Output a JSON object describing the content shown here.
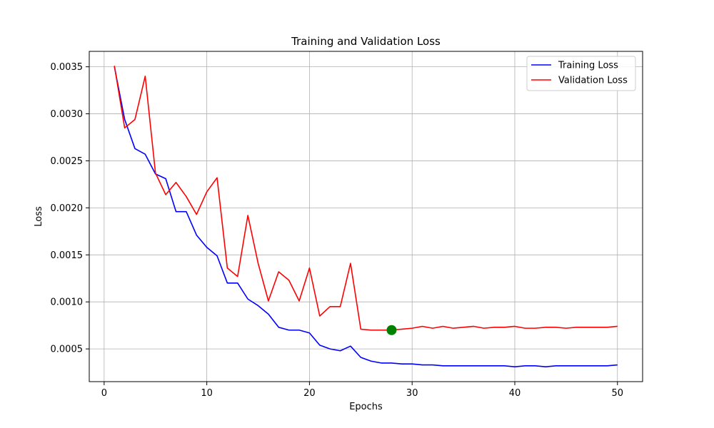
{
  "chart_data": {
    "type": "line",
    "title": "Training and Validation Loss",
    "xlabel": "Epochs",
    "ylabel": "Loss",
    "xlim": [
      -1.45,
      52.45
    ],
    "ylim": [
      0.000152,
      0.003664
    ],
    "xticks": [
      0,
      10,
      20,
      30,
      40,
      50
    ],
    "xtick_labels": [
      "0",
      "10",
      "20",
      "30",
      "40",
      "50"
    ],
    "yticks": [
      0.0005,
      0.001,
      0.0015,
      0.002,
      0.0025,
      0.003,
      0.0035
    ],
    "ytick_labels": [
      "0.0005",
      "0.0010",
      "0.0015",
      "0.0020",
      "0.0025",
      "0.0030",
      "0.0035"
    ],
    "grid": true,
    "legend_position": "top-right",
    "x": [
      1,
      2,
      3,
      4,
      5,
      6,
      7,
      8,
      9,
      10,
      11,
      12,
      13,
      14,
      15,
      16,
      17,
      18,
      19,
      20,
      21,
      22,
      23,
      24,
      25,
      26,
      27,
      28,
      29,
      30,
      31,
      32,
      33,
      34,
      35,
      36,
      37,
      38,
      39,
      40,
      41,
      42,
      43,
      44,
      45,
      46,
      47,
      48,
      49,
      50
    ],
    "series": [
      {
        "name": "Training Loss",
        "color": "#0000ff",
        "values": [
          0.0035,
          0.00294,
          0.00263,
          0.00257,
          0.00236,
          0.00231,
          0.00196,
          0.00196,
          0.00171,
          0.00158,
          0.00149,
          0.0012,
          0.0012,
          0.00103,
          0.00096,
          0.00087,
          0.00073,
          0.0007,
          0.0007,
          0.00067,
          0.00054,
          0.0005,
          0.00048,
          0.00053,
          0.00041,
          0.00037,
          0.00035,
          0.00035,
          0.00034,
          0.00034,
          0.00033,
          0.00033,
          0.00032,
          0.00032,
          0.00032,
          0.00032,
          0.00032,
          0.00032,
          0.00032,
          0.00031,
          0.00032,
          0.00032,
          0.00031,
          0.00032,
          0.00032,
          0.00032,
          0.00032,
          0.00032,
          0.00032,
          0.00033
        ]
      },
      {
        "name": "Validation Loss",
        "color": "#ff0000",
        "values": [
          0.00351,
          0.00285,
          0.00294,
          0.0034,
          0.00237,
          0.00214,
          0.00227,
          0.00212,
          0.00193,
          0.00217,
          0.00232,
          0.00136,
          0.00127,
          0.00192,
          0.00141,
          0.00101,
          0.00132,
          0.00123,
          0.00101,
          0.00136,
          0.00085,
          0.00095,
          0.00095,
          0.00141,
          0.00071,
          0.0007,
          0.0007,
          0.0007,
          0.00071,
          0.00072,
          0.00074,
          0.00072,
          0.00074,
          0.00072,
          0.00073,
          0.00074,
          0.00072,
          0.00073,
          0.00073,
          0.00074,
          0.00072,
          0.00072,
          0.00073,
          0.00073,
          0.00072,
          0.00073,
          0.00073,
          0.00073,
          0.00073,
          0.00074
        ]
      }
    ],
    "markers": [
      {
        "x": 28,
        "y": 0.0007,
        "color": "#008000"
      }
    ]
  }
}
